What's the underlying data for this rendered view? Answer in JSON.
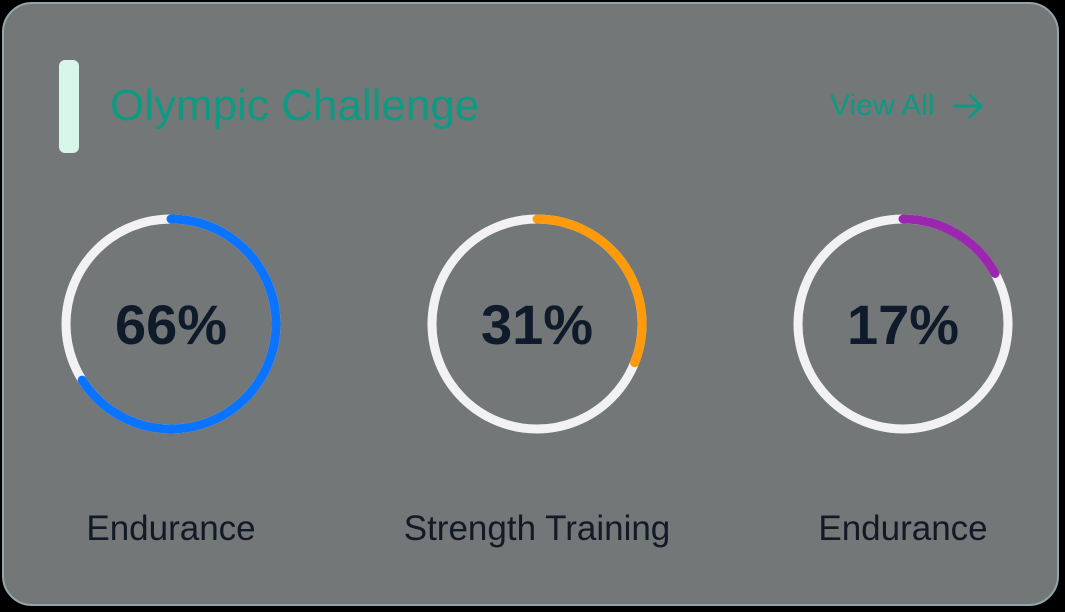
{
  "header": {
    "title": "Olympic Challenge",
    "view_all_label": "View All",
    "view_all_icon": "arrow-right-icon",
    "title_color": "#0d9a82"
  },
  "rings": [
    {
      "value": 66,
      "value_text": "66%",
      "label": "Endurance",
      "color": "#0a73ff",
      "track_color": "#f2f2f4"
    },
    {
      "value": 31,
      "value_text": "31%",
      "label": "Strength Training",
      "color": "#ff9a0a",
      "track_color": "#f2f2f4"
    },
    {
      "value": 17,
      "value_text": "17%",
      "label": "Endurance",
      "color": "#9b27b0",
      "track_color": "#f2f2f4"
    }
  ]
}
